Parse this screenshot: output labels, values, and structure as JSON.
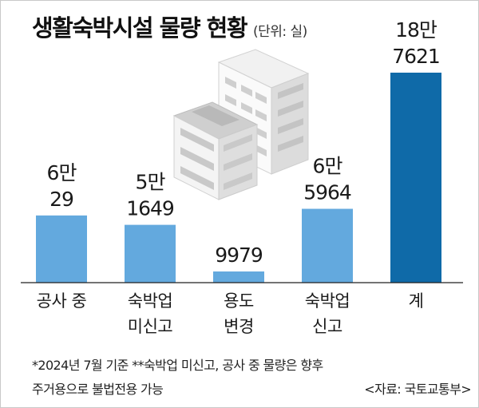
{
  "title": "생활숙박시설 물량 현황",
  "unit": "(단위: 실)",
  "chart_data": {
    "type": "bar",
    "categories": [
      [
        "공사 중"
      ],
      [
        "숙박업",
        "미신고"
      ],
      [
        "용도",
        "변경"
      ],
      [
        "숙박업",
        "신고"
      ],
      [
        "계"
      ]
    ],
    "values": [
      60029,
      51649,
      9979,
      65964,
      187621
    ],
    "value_labels": [
      [
        "6만",
        "29"
      ],
      [
        "5만",
        "1649"
      ],
      [
        "9979"
      ],
      [
        "6만",
        "5964"
      ],
      [
        "18만",
        "7621"
      ]
    ],
    "bar_colors": [
      "#63a9de",
      "#63a9de",
      "#63a9de",
      "#63a9de",
      "#0f6aa8"
    ],
    "ylim": [
      0,
      187621
    ]
  },
  "footnote_1": "*2024년 7월 기준  **숙박업 미신고, 공사 중 물량은 향후",
  "footnote_2": "주거용으로 불법전용 가능",
  "source": "<자료: 국토교통부>"
}
